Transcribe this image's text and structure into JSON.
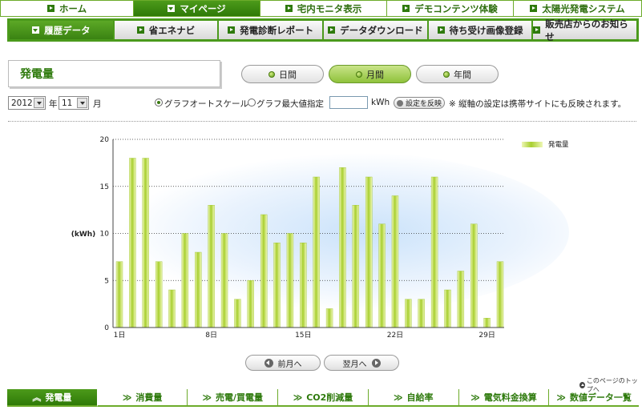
{
  "top_nav": [
    {
      "label": "ホーム",
      "active": false
    },
    {
      "label": "マイページ",
      "active": true
    },
    {
      "label": "宅内モニタ表示",
      "active": false
    },
    {
      "label": "デモコンテンツ体験",
      "active": false
    },
    {
      "label": "太陽光発電システム",
      "active": false
    }
  ],
  "sub_nav": [
    {
      "label": "履歴データ",
      "active": true
    },
    {
      "label": "省エネナビ",
      "active": false
    },
    {
      "label": "発電診断レポート",
      "active": false
    },
    {
      "label": "データダウンロード",
      "active": false
    },
    {
      "label": "待ち受け画像登録",
      "active": false
    },
    {
      "label": "販売店からのお知らせ",
      "active": false
    }
  ],
  "page_title": "発電量",
  "period_buttons": [
    {
      "label": "日間",
      "active": false
    },
    {
      "label": "月間",
      "active": true
    },
    {
      "label": "年間",
      "active": false
    }
  ],
  "controls": {
    "year_value": "2012",
    "year_unit": "年",
    "month_value": "11",
    "month_unit": "月",
    "radio_auto": "グラフオートスケール",
    "radio_max": "グラフ最大値指定",
    "max_value": "",
    "max_unit": "kWh",
    "apply_label": "設定を反映",
    "note": "※ 縦軸の設定は携帯サイトにも反映されます。"
  },
  "chart_data": {
    "type": "bar",
    "ylabel": "(kWh)",
    "ylim": [
      0,
      20
    ],
    "yticks": [
      "0",
      "5",
      "10",
      "15",
      "20"
    ],
    "x_tick_labels": [
      {
        "day": 1,
        "label": "1日"
      },
      {
        "day": 8,
        "label": "8日"
      },
      {
        "day": 15,
        "label": "15日"
      },
      {
        "day": 22,
        "label": "22日"
      },
      {
        "day": 29,
        "label": "29日"
      }
    ],
    "legend": "発電量",
    "legend_position": "top-right",
    "days": [
      1,
      2,
      3,
      4,
      5,
      6,
      7,
      8,
      9,
      10,
      11,
      12,
      13,
      14,
      15,
      16,
      17,
      18,
      19,
      20,
      21,
      22,
      23,
      24,
      25,
      26,
      27,
      28,
      29,
      30
    ],
    "values": [
      7,
      18,
      18,
      7,
      4,
      10,
      8,
      13,
      10,
      3,
      5,
      12,
      9,
      10,
      9,
      16,
      2,
      17,
      13,
      16,
      11,
      14,
      3,
      3,
      16,
      4,
      6,
      11,
      1,
      7
    ],
    "bar_color_light": "#eef7b5",
    "bar_color_dark": "#a8cf30"
  },
  "nav_buttons": {
    "prev": "前月へ",
    "next": "翌月へ"
  },
  "page_top_link": "このページのトップへ",
  "bottom_nav": [
    {
      "label": "発電量",
      "prefix": "︽",
      "active": true
    },
    {
      "label": "消費量",
      "prefix": "≫",
      "active": false
    },
    {
      "label": "売電/買電量",
      "prefix": "≫",
      "active": false
    },
    {
      "label": "CO2削減量",
      "prefix": "≫",
      "active": false
    },
    {
      "label": "自給率",
      "prefix": "≫",
      "active": false
    },
    {
      "label": "電気料金換算",
      "prefix": "≫",
      "active": false
    },
    {
      "label": "数値データ一覧",
      "prefix": "≫",
      "active": false
    }
  ]
}
